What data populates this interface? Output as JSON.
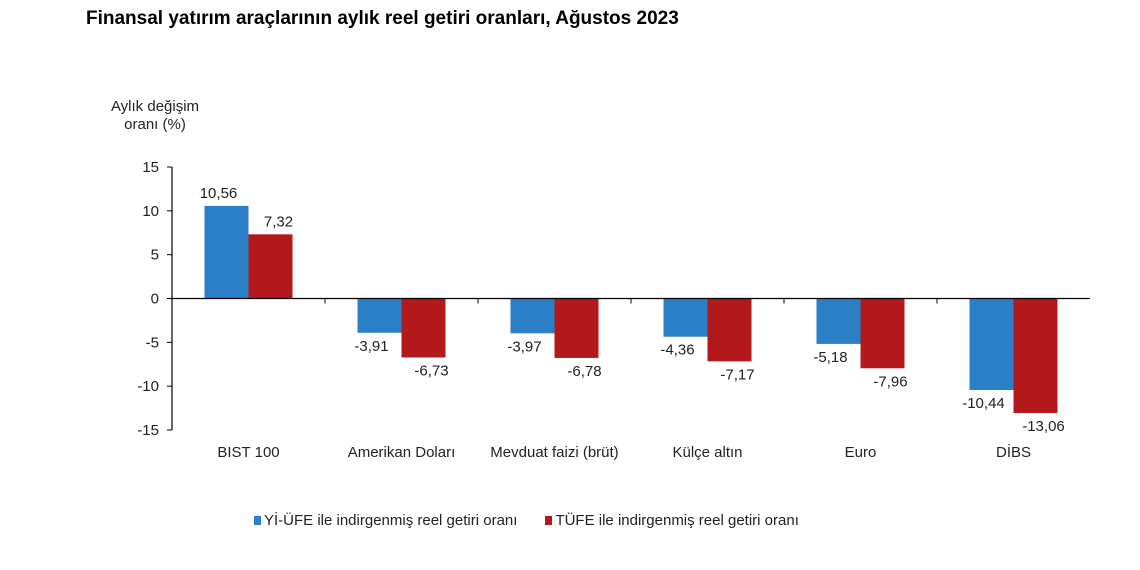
{
  "chart_data": {
    "type": "bar",
    "title": "Finansal yatırım araçlarının aylık reel getiri oranları, Ağustos 2023",
    "ylabel": [
      "Aylık değişim",
      "oranı (%)"
    ],
    "xlabel": "",
    "ylim": [
      -15,
      15
    ],
    "yticks": [
      15,
      10,
      5,
      0,
      -5,
      -10,
      -15
    ],
    "grid": false,
    "legend_position": "bottom",
    "categories": [
      "BIST 100",
      "Amerikan Doları",
      "Mevduat faizi (brüt)",
      "Külçe altın",
      "Euro",
      "DİBS"
    ],
    "series": [
      {
        "name": "Yİ-ÜFE ile indirgenmiş reel getiri oranı",
        "color": "#2b7fc6",
        "values": [
          10.56,
          -3.91,
          -3.97,
          -4.36,
          -5.18,
          -10.44
        ],
        "labels": [
          "10,56",
          "-3,91",
          "-3,97",
          "-4,36",
          "-5,18",
          "-10,44"
        ]
      },
      {
        "name": "TÜFE ile indirgenmiş reel getiri oranı",
        "color": "#b3191b",
        "values": [
          7.32,
          -6.73,
          -6.78,
          -7.17,
          -7.96,
          -13.06
        ],
        "labels": [
          "7,32",
          "-6,73",
          "-6,78",
          "-7,17",
          "-7,96",
          "-13,06"
        ]
      }
    ]
  }
}
